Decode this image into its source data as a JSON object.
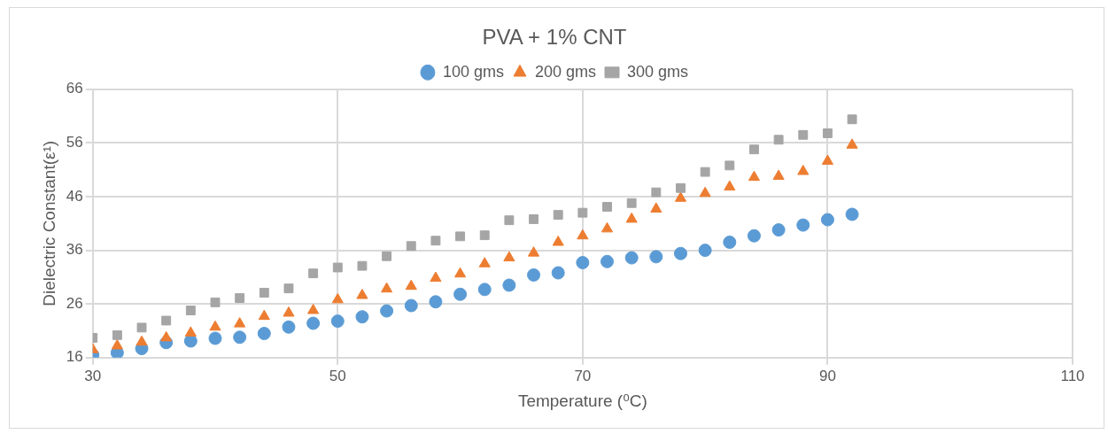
{
  "chart_data": {
    "type": "scatter",
    "title": "PVA + 1% CNT",
    "xlabel": "Temperature (⁰C)",
    "ylabel": "Dielectric Constant(ε¹)",
    "x": [
      30,
      32,
      34,
      36,
      38,
      40,
      42,
      44,
      46,
      48,
      50,
      52,
      54,
      56,
      58,
      60,
      62,
      64,
      66,
      68,
      70,
      72,
      74,
      76,
      78,
      80,
      82,
      84,
      86,
      88,
      90,
      92
    ],
    "series": [
      {
        "name": "100 gms",
        "color": "#5b9bd5",
        "marker": "circle",
        "values": [
          16.5,
          16.9,
          17.7,
          18.8,
          19.1,
          19.6,
          19.8,
          20.5,
          21.7,
          22.4,
          22.8,
          23.6,
          24.7,
          25.7,
          26.4,
          27.8,
          28.7,
          29.5,
          31.4,
          31.8,
          33.7,
          33.9,
          34.6,
          34.8,
          35.4,
          36,
          37.5,
          38.7,
          39.8,
          40.7,
          41.7,
          42.7
        ]
      },
      {
        "name": "200 gms",
        "color": "#ed7d31",
        "marker": "triangle",
        "values": [
          17.5,
          18.2,
          18.9,
          19.7,
          20.6,
          21.7,
          22.3,
          23.7,
          24.3,
          24.8,
          26.8,
          27.6,
          28.8,
          29.3,
          30.8,
          31.6,
          33.5,
          34.6,
          35.5,
          37.5,
          38.7,
          40,
          41.8,
          43.7,
          45.7,
          46.6,
          47.8,
          49.6,
          49.8,
          50.7,
          52.6,
          55.6
        ]
      },
      {
        "name": "300 gms",
        "color": "#a5a5a5",
        "marker": "square",
        "values": [
          19.7,
          20.2,
          21.6,
          22.9,
          24.8,
          26.3,
          27.1,
          28.1,
          28.9,
          31.7,
          32.8,
          33.1,
          34.9,
          36.8,
          37.8,
          38.6,
          38.8,
          41.6,
          41.8,
          42.6,
          43.0,
          44.1,
          44.8,
          46.8,
          47.6,
          50.6,
          51.8,
          54.8,
          56.6,
          57.5,
          57.8,
          60.4
        ]
      }
    ],
    "xlim": [
      30,
      110
    ],
    "xticks": [
      30,
      50,
      70,
      90,
      110
    ],
    "ylim": [
      16,
      66
    ],
    "yticks": [
      16,
      26,
      36,
      46,
      56,
      66
    ],
    "grid": true,
    "legend": "top"
  }
}
